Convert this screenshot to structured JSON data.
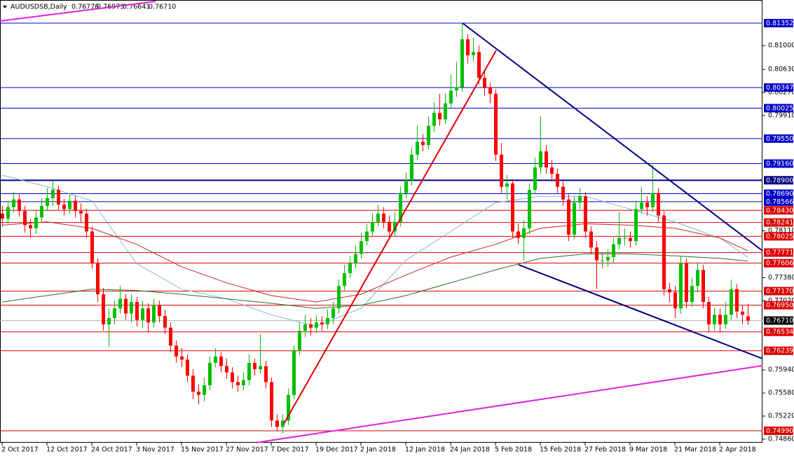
{
  "header": {
    "symbol": "AUDUSDSB,Daily",
    "ohlc": [
      "0.76776",
      "0.76973",
      "0.76641",
      "0.76710"
    ]
  },
  "chart_data": {
    "type": "candlestick",
    "categories": [
      "2 Oct 2017",
      null,
      null,
      null,
      null,
      null,
      null,
      null,
      "12 Oct 2017",
      null,
      null,
      null,
      null,
      null,
      null,
      null,
      "24 Oct 2017",
      null,
      null,
      null,
      null,
      null,
      null,
      null,
      "3 Nov 2017",
      null,
      null,
      null,
      null,
      null,
      null,
      null,
      "15 Nov 2017",
      null,
      null,
      null,
      null,
      null,
      null,
      null,
      "27 Nov 2017",
      null,
      null,
      null,
      null,
      null,
      null,
      null,
      "7 Dec 2017",
      null,
      null,
      null,
      null,
      null,
      null,
      null,
      "19 Dec 2017",
      null,
      null,
      null,
      null,
      null,
      null,
      null,
      "2 Jan 2018",
      null,
      null,
      null,
      null,
      null,
      null,
      null,
      "12 Jan 2018",
      null,
      null,
      null,
      null,
      null,
      null,
      null,
      "24 Jan 2018",
      null,
      null,
      null,
      null,
      null,
      null,
      null,
      "5 Feb 2018",
      null,
      null,
      null,
      null,
      null,
      null,
      null,
      "15 Feb 2018",
      null,
      null,
      null,
      null,
      null,
      null,
      null,
      "27 Feb 2018",
      null,
      null,
      null,
      null,
      null,
      null,
      null,
      "9 Mar 2018",
      null,
      null,
      null,
      null,
      null,
      null,
      null,
      "21 Mar 2018",
      null,
      null,
      null,
      null,
      null,
      null,
      null,
      "2 Apr 2018",
      null,
      null,
      null,
      null,
      null
    ],
    "ohlc": [
      [
        0.7838,
        0.785,
        0.7818,
        0.783
      ],
      [
        0.783,
        0.7858,
        0.7822,
        0.7848
      ],
      [
        0.7848,
        0.7872,
        0.784,
        0.786
      ],
      [
        0.786,
        0.7868,
        0.7833,
        0.7842
      ],
      [
        0.7842,
        0.785,
        0.7808,
        0.782
      ],
      [
        0.782,
        0.783,
        0.78,
        0.7815
      ],
      [
        0.7815,
        0.7842,
        0.7806,
        0.7832
      ],
      [
        0.7832,
        0.7862,
        0.7825,
        0.785
      ],
      [
        0.785,
        0.7878,
        0.7842,
        0.7862
      ],
      [
        0.7862,
        0.789,
        0.785,
        0.7875
      ],
      [
        0.7875,
        0.7882,
        0.7844,
        0.7852
      ],
      [
        0.7852,
        0.7861,
        0.7835,
        0.7845
      ],
      [
        0.7845,
        0.787,
        0.7838,
        0.7858
      ],
      [
        0.7858,
        0.7866,
        0.7832,
        0.7842
      ],
      [
        0.7842,
        0.7854,
        0.7825,
        0.7838
      ],
      [
        0.7838,
        0.7845,
        0.78,
        0.781
      ],
      [
        0.781,
        0.7818,
        0.7752,
        0.776
      ],
      [
        0.776,
        0.7768,
        0.77,
        0.7712
      ],
      [
        0.7712,
        0.7722,
        0.7655,
        0.7665
      ],
      [
        0.7665,
        0.769,
        0.763,
        0.7675
      ],
      [
        0.7675,
        0.7702,
        0.7665,
        0.769
      ],
      [
        0.769,
        0.7725,
        0.7682,
        0.7705
      ],
      [
        0.7705,
        0.7712,
        0.7672,
        0.7682
      ],
      [
        0.7682,
        0.7712,
        0.7668,
        0.77
      ],
      [
        0.77,
        0.7708,
        0.7662,
        0.7672
      ],
      [
        0.7672,
        0.7702,
        0.766,
        0.769
      ],
      [
        0.769,
        0.7698,
        0.7652,
        0.7668
      ],
      [
        0.7668,
        0.7705,
        0.766,
        0.7695
      ],
      [
        0.7695,
        0.7702,
        0.7668,
        0.7678
      ],
      [
        0.7678,
        0.7688,
        0.765,
        0.766
      ],
      [
        0.766,
        0.7668,
        0.7622,
        0.7632
      ],
      [
        0.7632,
        0.764,
        0.7605,
        0.7615
      ],
      [
        0.7615,
        0.7628,
        0.7598,
        0.761
      ],
      [
        0.761,
        0.7618,
        0.7575,
        0.7585
      ],
      [
        0.7585,
        0.7595,
        0.7548,
        0.756
      ],
      [
        0.756,
        0.7572,
        0.754,
        0.7555
      ],
      [
        0.7555,
        0.7582,
        0.7545,
        0.757
      ],
      [
        0.757,
        0.7615,
        0.7562,
        0.7605
      ],
      [
        0.7605,
        0.7628,
        0.7598,
        0.7615
      ],
      [
        0.7615,
        0.7622,
        0.759,
        0.76
      ],
      [
        0.76,
        0.7612,
        0.758,
        0.759
      ],
      [
        0.759,
        0.7598,
        0.7565,
        0.7575
      ],
      [
        0.7575,
        0.7585,
        0.756,
        0.757
      ],
      [
        0.757,
        0.759,
        0.7562,
        0.7578
      ],
      [
        0.7578,
        0.7618,
        0.757,
        0.7605
      ],
      [
        0.7605,
        0.7612,
        0.7585,
        0.7595
      ],
      [
        0.7595,
        0.765,
        0.7588,
        0.76
      ],
      [
        0.76,
        0.7608,
        0.7565,
        0.7575
      ],
      [
        0.7575,
        0.7582,
        0.7505,
        0.7515
      ],
      [
        0.7515,
        0.7525,
        0.7498,
        0.7505
      ],
      [
        0.7505,
        0.7525,
        0.7495,
        0.7515
      ],
      [
        0.7515,
        0.7565,
        0.7508,
        0.7555
      ],
      [
        0.7555,
        0.7632,
        0.7548,
        0.7625
      ],
      [
        0.7625,
        0.7668,
        0.7618,
        0.7655
      ],
      [
        0.7655,
        0.768,
        0.7645,
        0.7665
      ],
      [
        0.7665,
        0.7675,
        0.7648,
        0.766
      ],
      [
        0.766,
        0.768,
        0.7652,
        0.7668
      ],
      [
        0.7668,
        0.7678,
        0.7655,
        0.7665
      ],
      [
        0.7665,
        0.7688,
        0.7658,
        0.7675
      ],
      [
        0.7675,
        0.77,
        0.7665,
        0.769
      ],
      [
        0.769,
        0.7735,
        0.7682,
        0.7725
      ],
      [
        0.7725,
        0.7758,
        0.7718,
        0.7745
      ],
      [
        0.7745,
        0.7772,
        0.7738,
        0.776
      ],
      [
        0.776,
        0.7788,
        0.7752,
        0.7775
      ],
      [
        0.7775,
        0.7808,
        0.7768,
        0.7795
      ],
      [
        0.7795,
        0.7822,
        0.7788,
        0.781
      ],
      [
        0.781,
        0.7838,
        0.7802,
        0.7825
      ],
      [
        0.7825,
        0.7852,
        0.7818,
        0.7838
      ],
      [
        0.7838,
        0.7848,
        0.7815,
        0.7825
      ],
      [
        0.7825,
        0.7835,
        0.78,
        0.781
      ],
      [
        0.781,
        0.784,
        0.7802,
        0.7825
      ],
      [
        0.7825,
        0.788,
        0.7818,
        0.787
      ],
      [
        0.787,
        0.7902,
        0.7862,
        0.789
      ],
      [
        0.789,
        0.7942,
        0.7882,
        0.793
      ],
      [
        0.793,
        0.7975,
        0.7922,
        0.795
      ],
      [
        0.795,
        0.7962,
        0.7935,
        0.7945
      ],
      [
        0.7945,
        0.799,
        0.7938,
        0.7975
      ],
      [
        0.7975,
        0.8012,
        0.7965,
        0.7995
      ],
      [
        0.7995,
        0.8025,
        0.7975,
        0.7985
      ],
      [
        0.7985,
        0.8025,
        0.7978,
        0.801
      ],
      [
        0.801,
        0.8055,
        0.8002,
        0.803
      ],
      [
        0.803,
        0.8075,
        0.802,
        0.8035
      ],
      [
        0.8035,
        0.8135,
        0.8028,
        0.811
      ],
      [
        0.811,
        0.8118,
        0.8072,
        0.8085
      ],
      [
        0.8085,
        0.8112,
        0.8075,
        0.809
      ],
      [
        0.809,
        0.81,
        0.804,
        0.805
      ],
      [
        0.805,
        0.8062,
        0.8022,
        0.8035
      ],
      [
        0.8035,
        0.8042,
        0.801,
        0.8025
      ],
      [
        0.8025,
        0.8032,
        0.792,
        0.793
      ],
      [
        0.793,
        0.7948,
        0.787,
        0.788
      ],
      [
        0.788,
        0.7898,
        0.786,
        0.7885
      ],
      [
        0.7885,
        0.7892,
        0.78,
        0.781
      ],
      [
        0.781,
        0.7822,
        0.779,
        0.78
      ],
      [
        0.78,
        0.7828,
        0.7765,
        0.7815
      ],
      [
        0.7815,
        0.7885,
        0.7806,
        0.7875
      ],
      [
        0.7875,
        0.7925,
        0.7868,
        0.791
      ],
      [
        0.791,
        0.799,
        0.79,
        0.7935
      ],
      [
        0.7935,
        0.7945,
        0.79,
        0.791
      ],
      [
        0.791,
        0.7922,
        0.7888,
        0.79
      ],
      [
        0.79,
        0.7908,
        0.787,
        0.788
      ],
      [
        0.788,
        0.789,
        0.785,
        0.786
      ],
      [
        0.786,
        0.7868,
        0.7795,
        0.7805
      ],
      [
        0.7805,
        0.7865,
        0.7798,
        0.7855
      ],
      [
        0.7855,
        0.7878,
        0.7845,
        0.7865
      ],
      [
        0.7865,
        0.7872,
        0.78,
        0.781
      ],
      [
        0.781,
        0.7818,
        0.7775,
        0.7785
      ],
      [
        0.7785,
        0.7795,
        0.772,
        0.7765
      ],
      [
        0.7765,
        0.7778,
        0.7752,
        0.7765
      ],
      [
        0.7765,
        0.7782,
        0.7755,
        0.777
      ],
      [
        0.777,
        0.78,
        0.776,
        0.779
      ],
      [
        0.779,
        0.784,
        0.7782,
        0.78
      ],
      [
        0.78,
        0.7815,
        0.7788,
        0.78
      ],
      [
        0.78,
        0.781,
        0.7785,
        0.7795
      ],
      [
        0.7795,
        0.7858,
        0.7788,
        0.7845
      ],
      [
        0.7845,
        0.788,
        0.7838,
        0.7855
      ],
      [
        0.7855,
        0.7865,
        0.7835,
        0.7848
      ],
      [
        0.7848,
        0.7915,
        0.784,
        0.787
      ],
      [
        0.787,
        0.7878,
        0.7825,
        0.7835
      ],
      [
        0.7835,
        0.7842,
        0.771,
        0.772
      ],
      [
        0.772,
        0.773,
        0.77,
        0.7715
      ],
      [
        0.7715,
        0.7725,
        0.7675,
        0.769
      ],
      [
        0.769,
        0.7772,
        0.7682,
        0.776
      ],
      [
        0.776,
        0.7768,
        0.769,
        0.77
      ],
      [
        0.77,
        0.7738,
        0.7692,
        0.7725
      ],
      [
        0.7725,
        0.7762,
        0.7715,
        0.775
      ],
      [
        0.775,
        0.7758,
        0.769,
        0.77
      ],
      [
        0.77,
        0.7708,
        0.7652,
        0.7665
      ],
      [
        0.7665,
        0.7692,
        0.7655,
        0.768
      ],
      [
        0.768,
        0.769,
        0.7652,
        0.7665
      ],
      [
        0.7665,
        0.77,
        0.7658,
        0.768
      ],
      [
        0.768,
        0.7735,
        0.7672,
        0.772
      ],
      [
        0.772,
        0.7728,
        0.7675,
        0.7685
      ],
      [
        0.7685,
        0.7695,
        0.7665,
        0.768
      ],
      [
        0.76776,
        0.76973,
        0.76641,
        0.7671
      ]
    ],
    "up_color": "#00c000",
    "down_color": "#ff0000",
    "ylim": [
      0.74804,
      0.81713
    ],
    "yticks": [
      {
        "value": 0.81,
        "label": "0.81000"
      },
      {
        "value": 0.8063,
        "label": "0.80630"
      },
      {
        "value": 0.8027,
        "label": "0.80270"
      },
      {
        "value": 0.7991,
        "label": "0.79910"
      },
      {
        "value": 0.7811,
        "label": "0.78110"
      },
      {
        "value": 0.7738,
        "label": "0.77380"
      },
      {
        "value": 0.7702,
        "label": "0.77020"
      },
      {
        "value": 0.7594,
        "label": "0.75940"
      },
      {
        "value": 0.7558,
        "label": "0.75580"
      },
      {
        "value": 0.7522,
        "label": "0.75220"
      },
      {
        "value": 0.7486,
        "label": "0.74860"
      }
    ],
    "moving_averages": [
      {
        "color": "#87b5d8",
        "x": [
          0,
          8,
          16,
          24,
          32,
          40,
          48,
          56,
          64,
          72,
          80,
          88,
          96,
          104,
          112,
          120,
          128,
          133
        ],
        "values": [
          0.7898,
          0.788,
          0.7858,
          0.776,
          0.772,
          0.7705,
          0.768,
          0.7662,
          0.769,
          0.7765,
          0.781,
          0.7855,
          0.7865,
          0.7865,
          0.7845,
          0.7825,
          0.78,
          0.777
        ]
      },
      {
        "color": "#c0282a",
        "x": [
          0,
          8,
          16,
          24,
          32,
          40,
          48,
          56,
          64,
          72,
          80,
          88,
          96,
          104,
          112,
          120,
          128,
          133
        ],
        "values": [
          0.782,
          0.7825,
          0.7815,
          0.779,
          0.7755,
          0.773,
          0.771,
          0.77,
          0.7712,
          0.7742,
          0.777,
          0.779,
          0.7815,
          0.7822,
          0.782,
          0.7815,
          0.78,
          0.778
        ]
      },
      {
        "color": "#2e6b2e",
        "x": [
          0,
          8,
          16,
          24,
          32,
          40,
          48,
          56,
          64,
          72,
          80,
          88,
          96,
          104,
          112,
          120,
          128,
          133
        ],
        "values": [
          0.77,
          0.771,
          0.772,
          0.7718,
          0.7712,
          0.7705,
          0.7698,
          0.769,
          0.7695,
          0.771,
          0.773,
          0.775,
          0.7768,
          0.7775,
          0.7775,
          0.7772,
          0.7768,
          0.7764
        ]
      }
    ],
    "levels": [
      {
        "value": 0.81352,
        "label": "0.81352",
        "color": "#0000c8"
      },
      {
        "value": 0.80347,
        "label": "0.80347",
        "color": "#0000c8"
      },
      {
        "value": 0.80025,
        "label": "0.80025",
        "color": "#0000c8"
      },
      {
        "value": 0.7955,
        "label": "0.79550",
        "color": "#0000c8"
      },
      {
        "value": 0.7916,
        "label": "0.79160",
        "color": "#0000c8"
      },
      {
        "value": 0.789,
        "label": "0.78900",
        "color": "#000080"
      },
      {
        "value": 0.7869,
        "label": "0.78690",
        "color": "#0000c8"
      },
      {
        "value": 0.78566,
        "label": "0.78566",
        "color": "#0000c8"
      },
      {
        "value": 0.7843,
        "label": "0.78430",
        "color": "#dd0000"
      },
      {
        "value": 0.78241,
        "label": "0.78241",
        "color": "#dd0000"
      },
      {
        "value": 0.78025,
        "label": "0.78025",
        "color": "#dd0000"
      },
      {
        "value": 0.77771,
        "label": "0.77771",
        "color": "#dd0000"
      },
      {
        "value": 0.77606,
        "label": "0.77606",
        "color": "#dd0000"
      },
      {
        "value": 0.7717,
        "label": "0.77170",
        "color": "#dd0000"
      },
      {
        "value": 0.7695,
        "label": "0.76950",
        "color": "#dd0000"
      },
      {
        "value": 0.76534,
        "label": "0.76534",
        "color": "#dd0000"
      },
      {
        "value": 0.76239,
        "label": "0.76239",
        "color": "#dd0000"
      },
      {
        "value": 0.7499,
        "label": "0.74990",
        "color": "#dd0000"
      }
    ],
    "current_price": {
      "value": 0.7671,
      "label": "0.76710",
      "color": "#000000"
    }
  }
}
